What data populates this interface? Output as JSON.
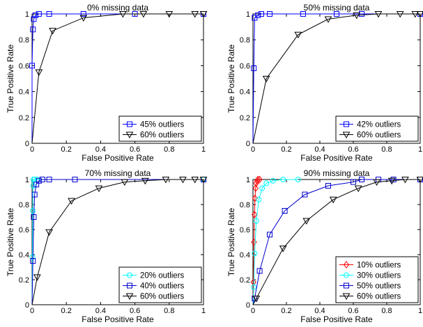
{
  "chart_data": [
    {
      "type": "line",
      "title": "0% missing data",
      "xlabel": "False Positive Rate",
      "ylabel": "True Positive Rate",
      "xlim": [
        0,
        1
      ],
      "ylim": [
        0,
        1
      ],
      "xticks": [
        "0",
        "0.2",
        "0.4",
        "0.6",
        "0.8",
        "1"
      ],
      "yticks": [
        "0",
        "0.2",
        "0.4",
        "0.6",
        "0.8",
        "1"
      ],
      "legend_position": "bottom-right",
      "series": [
        {
          "name": "45% outliers",
          "color": "#0000ff",
          "marker": "square",
          "points": [
            [
              0,
              0
            ],
            [
              0,
              0.6
            ],
            [
              0.005,
              0.88
            ],
            [
              0.01,
              0.96
            ],
            [
              0.02,
              0.99
            ],
            [
              0.04,
              1
            ],
            [
              0.1,
              1
            ],
            [
              0.3,
              1
            ],
            [
              0.6,
              1
            ],
            [
              1,
              1
            ]
          ]
        },
        {
          "name": "60% outliers",
          "color": "#000000",
          "marker": "triangle-down",
          "points": [
            [
              0,
              0
            ],
            [
              0.04,
              0.55
            ],
            [
              0.12,
              0.87
            ],
            [
              0.3,
              0.97
            ],
            [
              0.53,
              1
            ],
            [
              0.65,
              1
            ],
            [
              0.8,
              1
            ],
            [
              0.95,
              1
            ],
            [
              1,
              1
            ]
          ]
        }
      ]
    },
    {
      "type": "line",
      "title": "50% missing data",
      "xlabel": "False Positive Rate",
      "ylabel": "True Positive Rate",
      "xlim": [
        0,
        1
      ],
      "ylim": [
        0,
        1
      ],
      "xticks": [
        "0",
        "0.2",
        "0.4",
        "0.6",
        "0.8",
        "1"
      ],
      "yticks": [
        "0",
        "0.2",
        "0.4",
        "0.6",
        "0.8",
        "1"
      ],
      "legend_position": "bottom-right",
      "series": [
        {
          "name": "42% outliers",
          "color": "#0000ff",
          "marker": "square",
          "points": [
            [
              0,
              0
            ],
            [
              0.005,
              0.58
            ],
            [
              0.01,
              0.97
            ],
            [
              0.03,
              0.99
            ],
            [
              0.05,
              1
            ],
            [
              0.1,
              1
            ],
            [
              0.3,
              1
            ],
            [
              0.5,
              1
            ],
            [
              0.65,
              1
            ],
            [
              1,
              1
            ]
          ]
        },
        {
          "name": "60% outliers",
          "color": "#000000",
          "marker": "triangle-down",
          "points": [
            [
              0,
              0
            ],
            [
              0.08,
              0.5
            ],
            [
              0.27,
              0.84
            ],
            [
              0.45,
              0.96
            ],
            [
              0.62,
              0.99
            ],
            [
              0.75,
              1
            ],
            [
              0.88,
              1
            ],
            [
              0.97,
              1
            ],
            [
              1,
              1
            ]
          ]
        }
      ]
    },
    {
      "type": "line",
      "title": "70% missing data",
      "xlabel": "False Positive Rate",
      "ylabel": "True Positive Rate",
      "xlim": [
        0,
        1
      ],
      "ylim": [
        0,
        1
      ],
      "xticks": [
        "0",
        "0.2",
        "0.4",
        "0.6",
        "0.8",
        "1"
      ],
      "yticks": [
        "0",
        "0.2",
        "0.4",
        "0.6",
        "0.8",
        "1"
      ],
      "legend_position": "bottom-right",
      "series": [
        {
          "name": "20% outliers",
          "color": "#00ffff",
          "marker": "circle",
          "points": [
            [
              0,
              0
            ],
            [
              0.002,
              0.38
            ],
            [
              0.004,
              0.75
            ],
            [
              0.006,
              0.95
            ],
            [
              0.008,
              1
            ],
            [
              0.015,
              1
            ],
            [
              0.03,
              1
            ],
            [
              1,
              1
            ]
          ]
        },
        {
          "name": "40% outliers",
          "color": "#0000cc",
          "marker": "square",
          "points": [
            [
              0,
              0
            ],
            [
              0.005,
              0.35
            ],
            [
              0.01,
              0.7
            ],
            [
              0.015,
              0.88
            ],
            [
              0.025,
              0.96
            ],
            [
              0.04,
              0.99
            ],
            [
              0.06,
              1
            ],
            [
              0.1,
              1
            ],
            [
              0.25,
              1
            ],
            [
              1,
              1
            ]
          ]
        },
        {
          "name": "60% outliers",
          "color": "#000000",
          "marker": "triangle-down",
          "points": [
            [
              0,
              0
            ],
            [
              0.03,
              0.22
            ],
            [
              0.1,
              0.58
            ],
            [
              0.23,
              0.83
            ],
            [
              0.39,
              0.93
            ],
            [
              0.54,
              0.98
            ],
            [
              0.66,
              0.99
            ],
            [
              0.78,
              1
            ],
            [
              0.88,
              1
            ],
            [
              0.95,
              1
            ],
            [
              1,
              1
            ]
          ]
        }
      ]
    },
    {
      "type": "line",
      "title": "90% missing data",
      "xlabel": "False Positive Rate",
      "ylabel": "True Positive Rate",
      "xlim": [
        0,
        1
      ],
      "ylim": [
        0,
        1
      ],
      "xticks": [
        "0",
        "0.2",
        "0.4",
        "0.6",
        "0.8",
        "1"
      ],
      "yticks": [
        "0",
        "0.2",
        "0.4",
        "0.6",
        "0.8",
        "1"
      ],
      "legend_position": "bottom-right",
      "series": [
        {
          "name": "10% outliers",
          "color": "#ff0000",
          "marker": "diamond",
          "points": [
            [
              0,
              0
            ],
            [
              0.003,
              0.18
            ],
            [
              0.006,
              0.5
            ],
            [
              0.009,
              0.72
            ],
            [
              0.012,
              0.85
            ],
            [
              0.016,
              0.93
            ],
            [
              0.02,
              0.97
            ],
            [
              0.025,
              0.99
            ],
            [
              0.03,
              1
            ],
            [
              0.04,
              1
            ]
          ]
        },
        {
          "name": "30% outliers",
          "color": "#00ffff",
          "marker": "circle",
          "points": [
            [
              0,
              0
            ],
            [
              0.005,
              0.14
            ],
            [
              0.01,
              0.41
            ],
            [
              0.02,
              0.67
            ],
            [
              0.035,
              0.84
            ],
            [
              0.055,
              0.93
            ],
            [
              0.08,
              0.97
            ],
            [
              0.12,
              0.99
            ],
            [
              0.18,
              1
            ],
            [
              0.27,
              1
            ]
          ]
        },
        {
          "name": "50% outliers",
          "color": "#0000cc",
          "marker": "square",
          "points": [
            [
              0,
              0
            ],
            [
              0.01,
              0.05
            ],
            [
              0.04,
              0.27
            ],
            [
              0.1,
              0.56
            ],
            [
              0.19,
              0.75
            ],
            [
              0.31,
              0.88
            ],
            [
              0.45,
              0.95
            ],
            [
              0.6,
              0.98
            ],
            [
              0.65,
              1
            ],
            [
              0.75,
              1
            ],
            [
              0.84,
              1
            ],
            [
              1,
              1
            ]
          ]
        },
        {
          "name": "60% outliers",
          "color": "#000000",
          "marker": "triangle-down",
          "points": [
            [
              0,
              0
            ],
            [
              0.02,
              0.05
            ],
            [
              0.18,
              0.45
            ],
            [
              0.32,
              0.67
            ],
            [
              0.48,
              0.84
            ],
            [
              0.63,
              0.93
            ],
            [
              0.74,
              0.98
            ],
            [
              0.83,
              0.99
            ],
            [
              0.91,
              1
            ],
            [
              1,
              1
            ]
          ]
        }
      ]
    }
  ]
}
